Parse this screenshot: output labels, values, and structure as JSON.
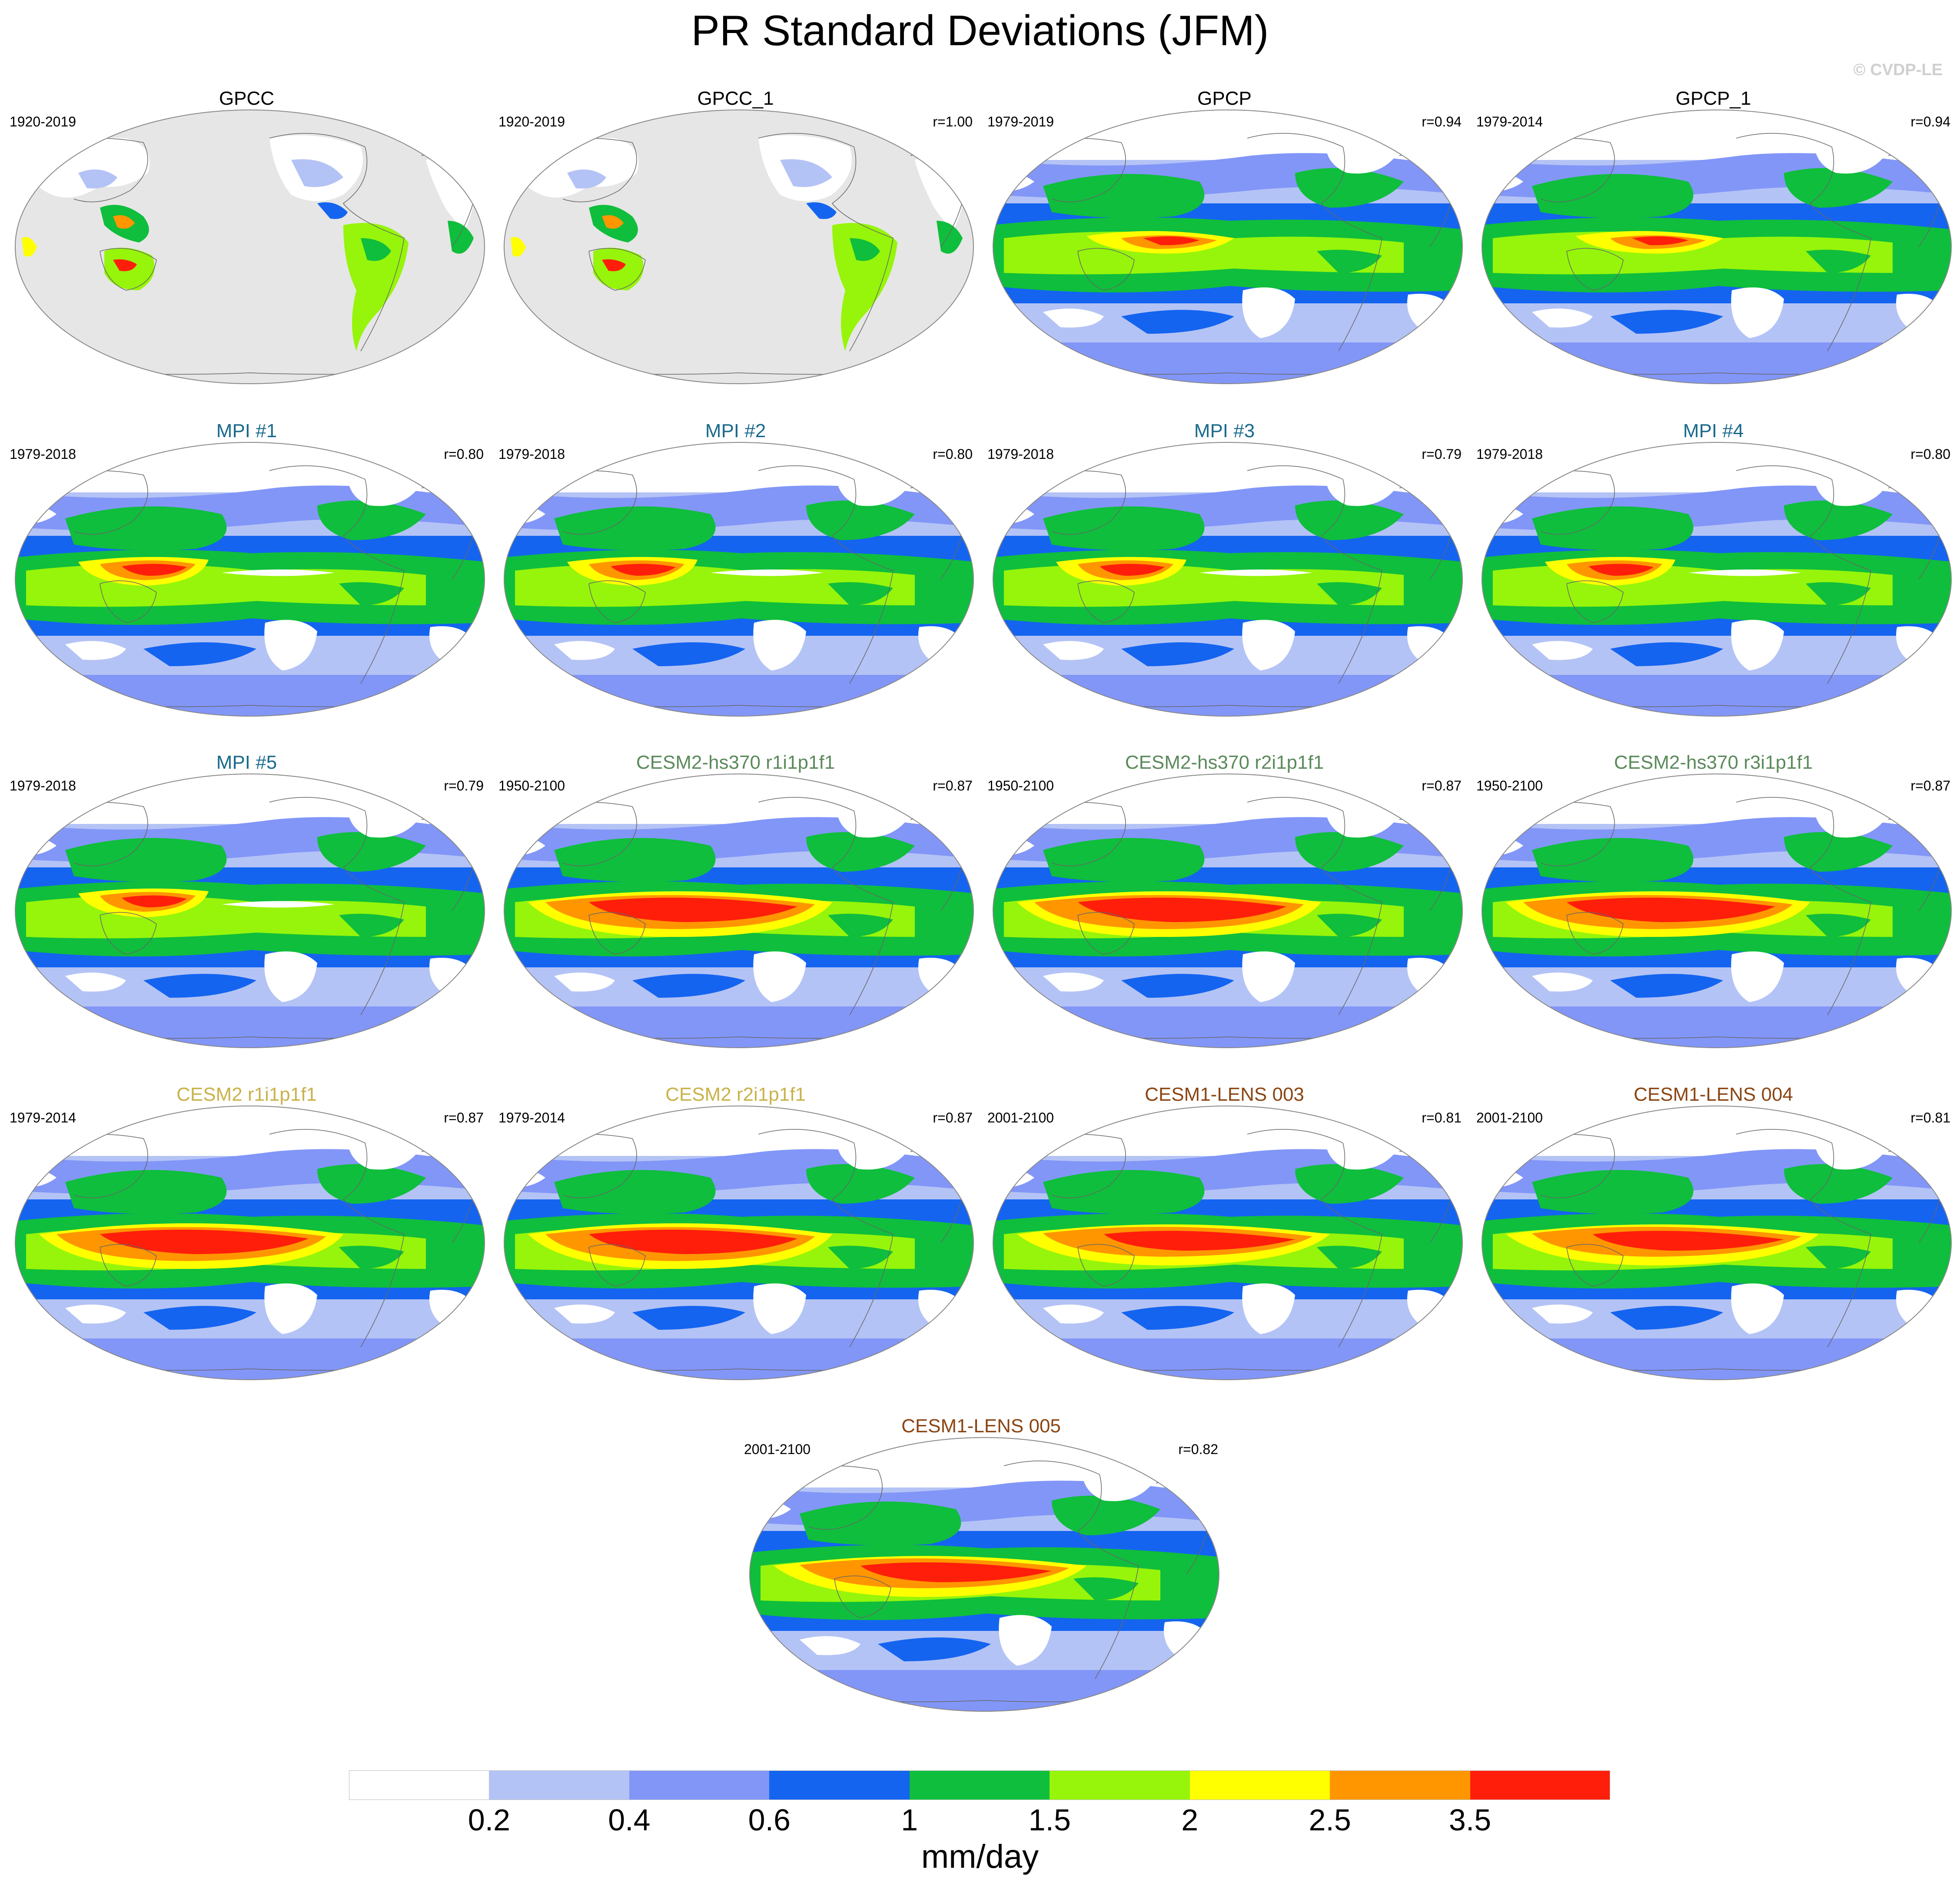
{
  "title": "PR Standard Deviations (JFM)",
  "watermark": "© CVDP-LE",
  "panels": [
    {
      "name": "GPCC",
      "years": "1920-2019",
      "r": "",
      "title_color": "#000000",
      "type": "obs_land"
    },
    {
      "name": "GPCC_1",
      "years": "1920-2019",
      "r": "r=1.00",
      "title_color": "#000000",
      "type": "obs_land"
    },
    {
      "name": "GPCP",
      "years": "1979-2019",
      "r": "r=0.94",
      "title_color": "#000000",
      "type": "obs_global"
    },
    {
      "name": "GPCP_1",
      "years": "1979-2014",
      "r": "r=0.94",
      "title_color": "#000000",
      "type": "obs_global"
    },
    {
      "name": "MPI #1",
      "years": "1979-2018",
      "r": "r=0.80",
      "title_color": "#1a6a8c",
      "type": "mpi"
    },
    {
      "name": "MPI #2",
      "years": "1979-2018",
      "r": "r=0.80",
      "title_color": "#1a6a8c",
      "type": "mpi"
    },
    {
      "name": "MPI #3",
      "years": "1979-2018",
      "r": "r=0.79",
      "title_color": "#1a6a8c",
      "type": "mpi"
    },
    {
      "name": "MPI #4",
      "years": "1979-2018",
      "r": "r=0.80",
      "title_color": "#1a6a8c",
      "type": "mpi"
    },
    {
      "name": "MPI #5",
      "years": "1979-2018",
      "r": "r=0.79",
      "title_color": "#1a6a8c",
      "type": "mpi"
    },
    {
      "name": "CESM2-hs370 r1i1p1f1",
      "years": "1950-2100",
      "r": "r=0.87",
      "title_color": "#5b8a5b",
      "type": "cesm2"
    },
    {
      "name": "CESM2-hs370 r2i1p1f1",
      "years": "1950-2100",
      "r": "r=0.87",
      "title_color": "#5b8a5b",
      "type": "cesm2"
    },
    {
      "name": "CESM2-hs370 r3i1p1f1",
      "years": "1950-2100",
      "r": "r=0.87",
      "title_color": "#5b8a5b",
      "type": "cesm2"
    },
    {
      "name": "CESM2 r1i1p1f1",
      "years": "1979-2014",
      "r": "r=0.87",
      "title_color": "#c9b24a",
      "type": "cesm2"
    },
    {
      "name": "CESM2 r2i1p1f1",
      "years": "1979-2014",
      "r": "r=0.87",
      "title_color": "#c9b24a",
      "type": "cesm2"
    },
    {
      "name": "CESM1-LENS 003",
      "years": "2001-2100",
      "r": "r=0.81",
      "title_color": "#8b4513",
      "type": "cesm1"
    },
    {
      "name": "CESM1-LENS 004",
      "years": "2001-2100",
      "r": "r=0.81",
      "title_color": "#8b4513",
      "type": "cesm1"
    },
    {
      "name": "CESM1-LENS 005",
      "years": "2001-2100",
      "r": "r=0.82",
      "title_color": "#8b4513",
      "type": "cesm1"
    }
  ],
  "colorbar": {
    "colors": [
      "#ffffff",
      "#b4c3f5",
      "#8296f8",
      "#1464f0",
      "#0fbe3c",
      "#96f50a",
      "#ffff00",
      "#ff9600",
      "#ff1e0a"
    ],
    "labels": [
      "0.2",
      "0.4",
      "0.6",
      "1",
      "1.5",
      "2",
      "2.5",
      "3.5"
    ],
    "units": "mm/day"
  }
}
